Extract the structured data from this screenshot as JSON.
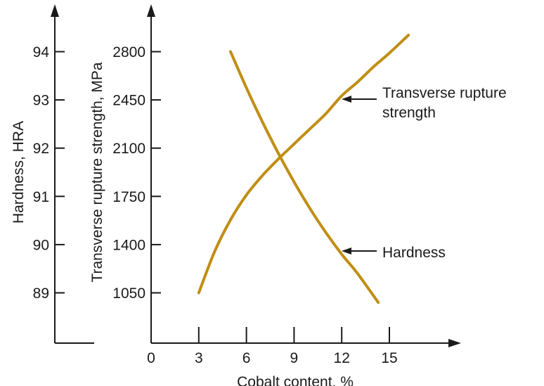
{
  "chart_data": {
    "type": "line",
    "xlabel": "Cobalt content, %",
    "x_ticks": [
      0,
      3,
      6,
      9,
      12,
      15
    ],
    "xlim": [
      0,
      19
    ],
    "axes": {
      "hardness": {
        "label": "Hardness, HRA",
        "ticks": [
          89,
          90,
          91,
          92,
          93,
          94
        ],
        "ylim": [
          88,
          95
        ]
      },
      "trs": {
        "label": "Transverse rupture strength, MPa",
        "ticks": [
          1050,
          1400,
          1750,
          2100,
          2450,
          2800
        ],
        "ylim": [
          700,
          3150
        ]
      }
    },
    "series": [
      {
        "name": "Transverse rupture strength",
        "axis": "trs",
        "annotation_lines": [
          "Transverse rupture",
          "strength"
        ],
        "x": [
          3,
          4,
          5,
          6,
          7,
          8,
          9,
          10,
          11,
          12,
          13,
          14,
          15,
          16.2
        ],
        "values": [
          1050,
          1350,
          1580,
          1760,
          1900,
          2020,
          2130,
          2240,
          2350,
          2480,
          2580,
          2690,
          2790,
          2920
        ]
      },
      {
        "name": "Hardness",
        "axis": "hardness",
        "annotation_lines": [
          "Hardness"
        ],
        "x": [
          5,
          6,
          7,
          8,
          9,
          10,
          11,
          12,
          13,
          14.3
        ],
        "values": [
          94.0,
          93.25,
          92.55,
          91.9,
          91.3,
          90.75,
          90.25,
          89.8,
          89.4,
          88.8
        ]
      }
    ],
    "curve_color": "#c08e14",
    "grid": false
  }
}
